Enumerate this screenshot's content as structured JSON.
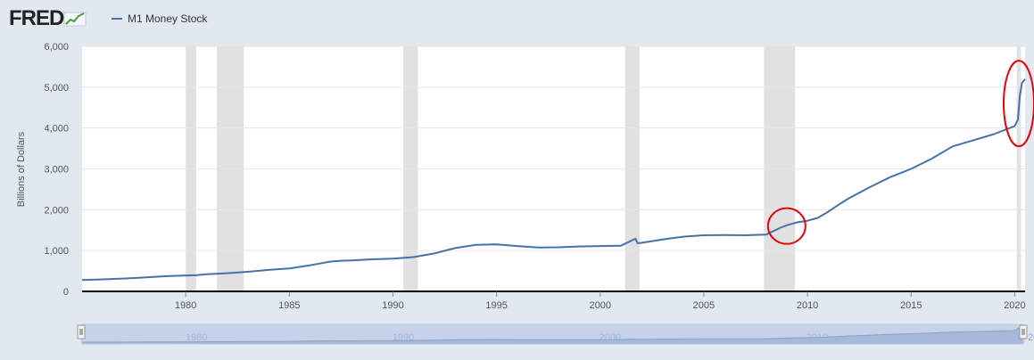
{
  "header": {
    "logo_text": "FRED",
    "legend_label": "M1 Money Stock"
  },
  "colors": {
    "series": "#4572a7",
    "recession": "#e1e1e1",
    "annotation": "#e8000b",
    "navigator_fill": "#b9c8e3",
    "navigator_line": "#4d6fa8"
  },
  "navigator": {
    "tick_labels": [
      "1980",
      "1990",
      "2000",
      "2010",
      "20"
    ]
  },
  "chart_data": {
    "type": "line",
    "title": "",
    "xlabel": "",
    "ylabel": "Billions of Dollars",
    "xlim": [
      1975.0,
      2020.5
    ],
    "ylim": [
      0,
      6000
    ],
    "x_ticks": [
      1980,
      1985,
      1990,
      1995,
      2000,
      2005,
      2010,
      2015,
      2020
    ],
    "y_ticks": [
      0,
      1000,
      2000,
      3000,
      4000,
      5000,
      6000
    ],
    "y_tick_labels": [
      "0",
      "1,000",
      "2,000",
      "3,000",
      "4,000",
      "5,000",
      "6,000"
    ],
    "grid": true,
    "legend": "top-left",
    "recessions": [
      [
        1980.0,
        1980.5
      ],
      [
        1981.5,
        1982.8
      ],
      [
        1990.5,
        1991.2
      ],
      [
        2001.2,
        2001.9
      ],
      [
        2007.9,
        2009.4
      ],
      [
        2020.1,
        2020.3
      ]
    ],
    "annotations": [
      {
        "type": "circle",
        "x": 2009.0,
        "y": 1600
      },
      {
        "type": "circle",
        "x": 2020.2,
        "y": 4600
      }
    ],
    "series": [
      {
        "name": "M1 Money Stock",
        "points": [
          [
            1975.0,
            280
          ],
          [
            1976,
            295
          ],
          [
            1977,
            315
          ],
          [
            1978,
            340
          ],
          [
            1979,
            370
          ],
          [
            1980,
            390
          ],
          [
            1980.5,
            395
          ],
          [
            1981,
            420
          ],
          [
            1982,
            445
          ],
          [
            1983,
            480
          ],
          [
            1984,
            525
          ],
          [
            1985,
            560
          ],
          [
            1986,
            640
          ],
          [
            1987,
            730
          ],
          [
            1987.5,
            750
          ],
          [
            1988,
            760
          ],
          [
            1989,
            785
          ],
          [
            1990,
            800
          ],
          [
            1991,
            840
          ],
          [
            1992,
            930
          ],
          [
            1993,
            1060
          ],
          [
            1994,
            1140
          ],
          [
            1995,
            1150
          ],
          [
            1996,
            1110
          ],
          [
            1997,
            1075
          ],
          [
            1998,
            1080
          ],
          [
            1999,
            1100
          ],
          [
            2000,
            1110
          ],
          [
            2001,
            1120
          ],
          [
            2001.7,
            1290
          ],
          [
            2001.8,
            1180
          ],
          [
            2002,
            1190
          ],
          [
            2003,
            1270
          ],
          [
            2004,
            1340
          ],
          [
            2005,
            1375
          ],
          [
            2006,
            1380
          ],
          [
            2007,
            1375
          ],
          [
            2008,
            1390
          ],
          [
            2008.7,
            1560
          ],
          [
            2009,
            1620
          ],
          [
            2009.5,
            1690
          ],
          [
            2010,
            1730
          ],
          [
            2010.5,
            1800
          ],
          [
            2011,
            1950
          ],
          [
            2011.5,
            2120
          ],
          [
            2012,
            2280
          ],
          [
            2013,
            2550
          ],
          [
            2014,
            2800
          ],
          [
            2015,
            3000
          ],
          [
            2016,
            3250
          ],
          [
            2017,
            3550
          ],
          [
            2018,
            3700
          ],
          [
            2019,
            3850
          ],
          [
            2020.0,
            4050
          ],
          [
            2020.15,
            4200
          ],
          [
            2020.25,
            4800
          ],
          [
            2020.35,
            5100
          ],
          [
            2020.5,
            5200
          ]
        ]
      }
    ]
  }
}
